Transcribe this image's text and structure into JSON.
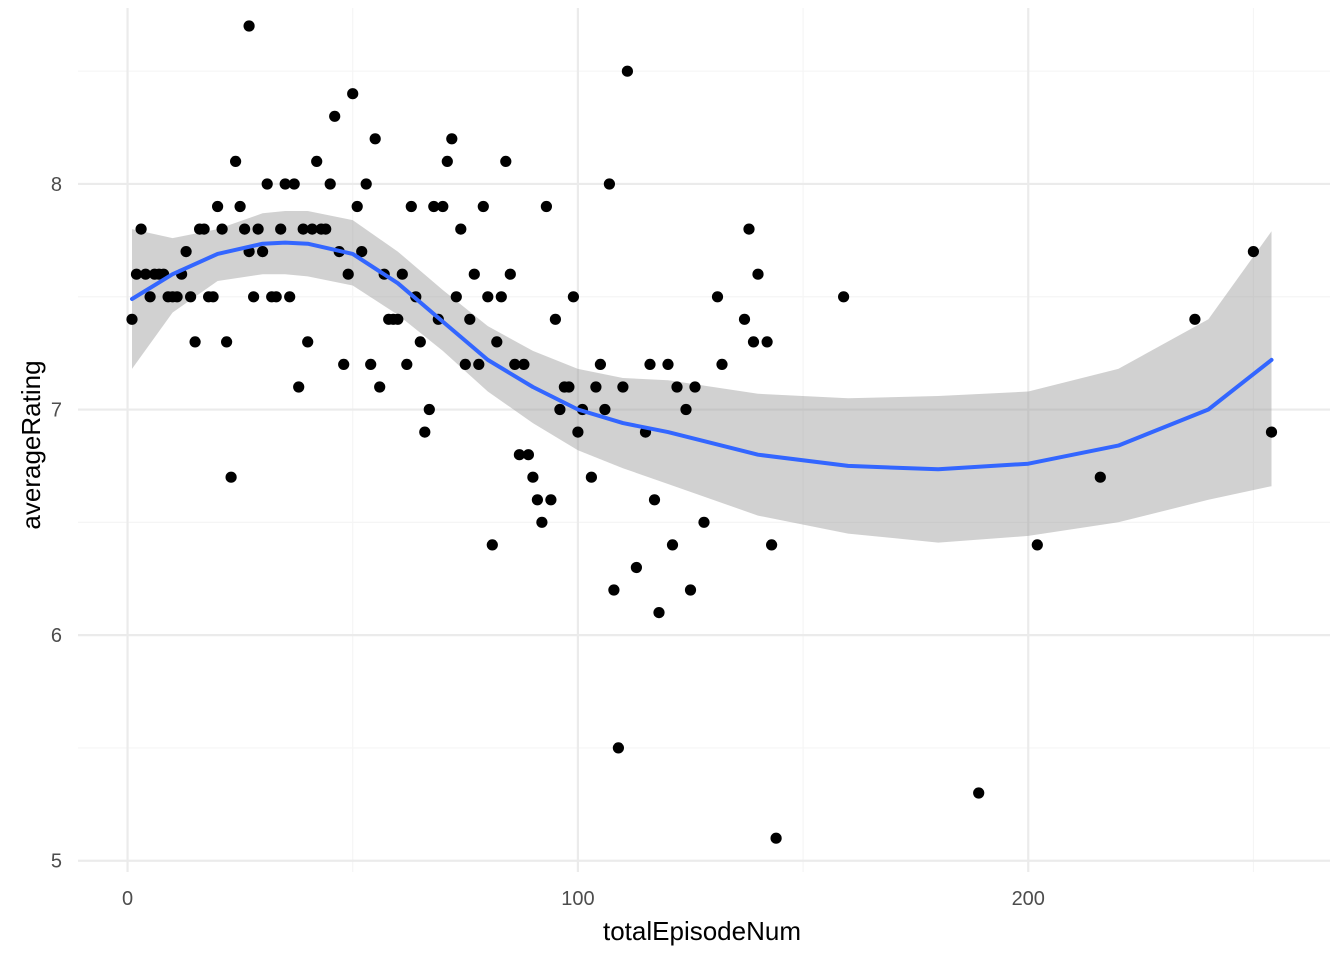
{
  "chart_data": {
    "type": "scatter",
    "xlabel": "totalEpisodeNum",
    "ylabel": "averageRating",
    "xlim": [
      -11,
      267
    ],
    "ylim": [
      4.95,
      8.78
    ],
    "x_ticks": [
      0,
      100,
      200
    ],
    "x_tick_labels": [
      "0",
      "100",
      "200"
    ],
    "x_minor_ticks": [
      50,
      150,
      250
    ],
    "y_ticks": [
      5,
      6,
      7,
      8
    ],
    "y_tick_labels": [
      "5",
      "6",
      "7",
      "8"
    ],
    "y_minor_ticks": [
      5.5,
      6.5,
      7.5,
      8.5
    ],
    "grid": true,
    "theme": "minimal",
    "colors": {
      "points": "#000000",
      "smooth_line": "#3366FF",
      "ribbon": "#999999",
      "grid_major": "#ebebeb",
      "grid_minor": "#f5f5f5"
    },
    "points": [
      [
        1,
        7.4
      ],
      [
        2,
        7.6
      ],
      [
        3,
        7.8
      ],
      [
        4,
        7.6
      ],
      [
        5,
        7.5
      ],
      [
        6,
        7.6
      ],
      [
        7,
        7.6
      ],
      [
        8,
        7.6
      ],
      [
        9,
        7.5
      ],
      [
        10,
        7.5
      ],
      [
        11,
        7.5
      ],
      [
        12,
        7.6
      ],
      [
        13,
        7.7
      ],
      [
        14,
        7.5
      ],
      [
        15,
        7.3
      ],
      [
        16,
        7.8
      ],
      [
        17,
        7.8
      ],
      [
        18,
        7.5
      ],
      [
        19,
        7.5
      ],
      [
        20,
        7.9
      ],
      [
        21,
        7.8
      ],
      [
        22,
        7.3
      ],
      [
        23,
        6.7
      ],
      [
        24,
        8.1
      ],
      [
        25,
        7.9
      ],
      [
        26,
        7.8
      ],
      [
        27,
        7.7
      ],
      [
        28,
        7.5
      ],
      [
        27,
        8.7
      ],
      [
        29,
        7.8
      ],
      [
        30,
        7.7
      ],
      [
        31,
        8.0
      ],
      [
        32,
        7.5
      ],
      [
        33,
        7.5
      ],
      [
        34,
        7.8
      ],
      [
        35,
        8.0
      ],
      [
        36,
        7.5
      ],
      [
        37,
        8.0
      ],
      [
        38,
        7.1
      ],
      [
        39,
        7.8
      ],
      [
        40,
        7.3
      ],
      [
        41,
        7.8
      ],
      [
        42,
        8.1
      ],
      [
        43,
        7.8
      ],
      [
        44,
        7.8
      ],
      [
        45,
        8.0
      ],
      [
        46,
        8.3
      ],
      [
        47,
        7.7
      ],
      [
        48,
        7.2
      ],
      [
        49,
        7.6
      ],
      [
        50,
        8.4
      ],
      [
        51,
        7.9
      ],
      [
        52,
        7.7
      ],
      [
        53,
        8.0
      ],
      [
        54,
        7.2
      ],
      [
        55,
        8.2
      ],
      [
        56,
        7.1
      ],
      [
        57,
        7.6
      ],
      [
        58,
        7.4
      ],
      [
        59,
        7.4
      ],
      [
        60,
        7.4
      ],
      [
        61,
        7.6
      ],
      [
        62,
        7.2
      ],
      [
        63,
        7.9
      ],
      [
        64,
        7.5
      ],
      [
        65,
        7.3
      ],
      [
        66,
        6.9
      ],
      [
        67,
        7.0
      ],
      [
        68,
        7.9
      ],
      [
        69,
        7.4
      ],
      [
        70,
        7.9
      ],
      [
        71,
        8.1
      ],
      [
        72,
        8.2
      ],
      [
        73,
        7.5
      ],
      [
        74,
        7.8
      ],
      [
        75,
        7.2
      ],
      [
        76,
        7.4
      ],
      [
        77,
        7.6
      ],
      [
        78,
        7.2
      ],
      [
        79,
        7.9
      ],
      [
        80,
        7.5
      ],
      [
        81,
        6.4
      ],
      [
        82,
        7.3
      ],
      [
        83,
        7.5
      ],
      [
        84,
        8.1
      ],
      [
        85,
        7.6
      ],
      [
        86,
        7.2
      ],
      [
        87,
        6.8
      ],
      [
        88,
        7.2
      ],
      [
        89,
        6.8
      ],
      [
        90,
        6.7
      ],
      [
        91,
        6.6
      ],
      [
        92,
        6.5
      ],
      [
        93,
        7.9
      ],
      [
        94,
        6.6
      ],
      [
        95,
        7.4
      ],
      [
        96,
        7.0
      ],
      [
        97,
        7.1
      ],
      [
        98,
        7.1
      ],
      [
        99,
        7.5
      ],
      [
        100,
        6.9
      ],
      [
        101,
        7.0
      ],
      [
        103,
        6.7
      ],
      [
        104,
        7.1
      ],
      [
        105,
        7.2
      ],
      [
        106,
        7.0
      ],
      [
        107,
        8.0
      ],
      [
        108,
        6.2
      ],
      [
        109,
        5.5
      ],
      [
        110,
        7.1
      ],
      [
        111,
        8.5
      ],
      [
        113,
        6.3
      ],
      [
        115,
        6.9
      ],
      [
        116,
        7.2
      ],
      [
        117,
        6.6
      ],
      [
        118,
        6.1
      ],
      [
        120,
        7.2
      ],
      [
        121,
        6.4
      ],
      [
        122,
        7.1
      ],
      [
        124,
        7.0
      ],
      [
        125,
        6.2
      ],
      [
        126,
        7.1
      ],
      [
        128,
        6.5
      ],
      [
        131,
        7.5
      ],
      [
        132,
        7.2
      ],
      [
        137,
        7.4
      ],
      [
        138,
        7.8
      ],
      [
        139,
        7.3
      ],
      [
        140,
        7.6
      ],
      [
        142,
        7.3
      ],
      [
        143,
        6.4
      ],
      [
        144,
        5.1
      ],
      [
        159,
        7.5
      ],
      [
        189,
        5.3
      ],
      [
        202,
        6.4
      ],
      [
        216,
        6.7
      ],
      [
        237,
        7.4
      ],
      [
        250,
        7.7
      ],
      [
        254,
        6.9
      ]
    ],
    "smooth": {
      "method": "loess",
      "x": [
        1,
        10,
        20,
        30,
        35,
        40,
        50,
        60,
        70,
        80,
        90,
        100,
        110,
        120,
        140,
        160,
        180,
        200,
        220,
        240,
        254
      ],
      "y": [
        7.49,
        7.6,
        7.69,
        7.735,
        7.74,
        7.735,
        7.69,
        7.56,
        7.39,
        7.22,
        7.1,
        7.0,
        6.94,
        6.9,
        6.8,
        6.75,
        6.735,
        6.76,
        6.84,
        7.0,
        7.22
      ],
      "lower": [
        7.18,
        7.43,
        7.57,
        7.6,
        7.6,
        7.59,
        7.55,
        7.42,
        7.26,
        7.08,
        6.94,
        6.82,
        6.74,
        6.67,
        6.53,
        6.45,
        6.41,
        6.44,
        6.5,
        6.6,
        6.66
      ],
      "upper": [
        7.8,
        7.76,
        7.8,
        7.87,
        7.88,
        7.88,
        7.84,
        7.7,
        7.53,
        7.37,
        7.26,
        7.18,
        7.14,
        7.13,
        7.07,
        7.05,
        7.06,
        7.08,
        7.18,
        7.4,
        7.79
      ]
    }
  }
}
